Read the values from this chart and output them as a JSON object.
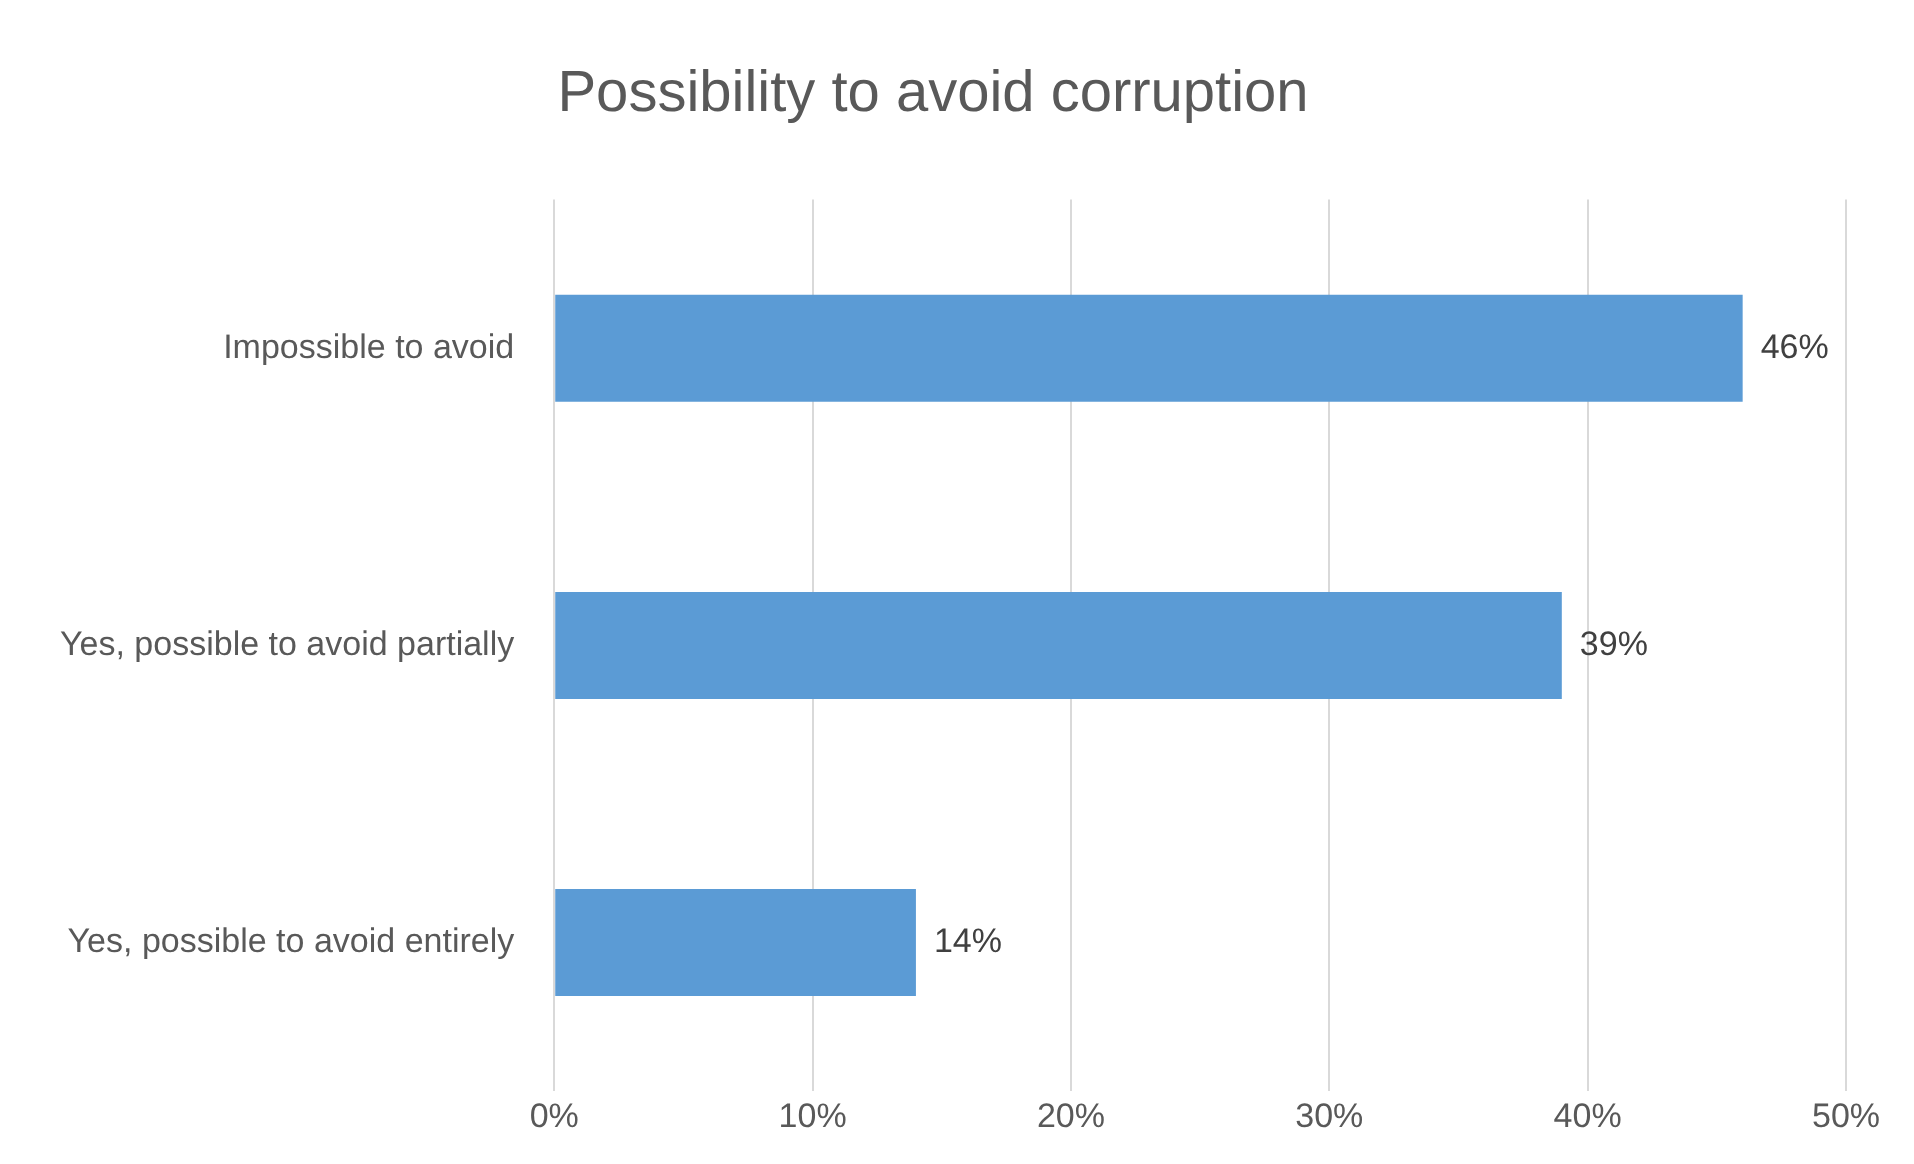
{
  "chart_data": {
    "type": "bar",
    "orientation": "horizontal",
    "title": "Possibility to avoid corruption",
    "categories": [
      "Impossible to avoid",
      "Yes, possible to avoid partially",
      "Yes, possible to avoid entirely"
    ],
    "values": [
      46,
      39,
      14
    ],
    "color": "#5b9bd5",
    "value_labels": [
      "46%",
      "39%",
      "14%"
    ],
    "xlim": [
      0,
      50
    ],
    "xticks": [
      {
        "value": 0,
        "label": "0%"
      },
      {
        "value": 10,
        "label": "10%"
      },
      {
        "value": 20,
        "label": "20%"
      },
      {
        "value": 30,
        "label": "30%"
      },
      {
        "value": 40,
        "label": "40%"
      },
      {
        "value": 50,
        "label": "50%"
      }
    ],
    "grid": "x",
    "legend": false
  }
}
